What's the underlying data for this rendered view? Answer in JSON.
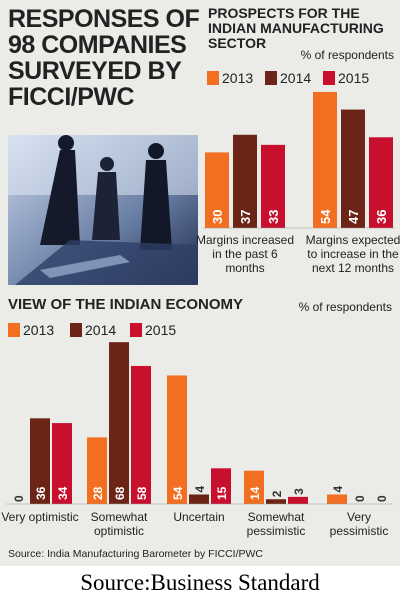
{
  "header": {
    "title": "RESPONSES OF 98 COMPANIES SURVEYED BY FICCI/PWC"
  },
  "chart_data": [
    {
      "type": "bar",
      "title": "PROSPECTS FOR THE INDIAN MANUFACTURING SECTOR",
      "unit": "% of respondents",
      "categories": [
        "Margins increased in the past 6 months",
        "Margins expected to increase in the next 12 months"
      ],
      "series": [
        {
          "name": "2013",
          "color": "#f26f21",
          "values": [
            30,
            54
          ]
        },
        {
          "name": "2014",
          "color": "#6b2416",
          "values": [
            37,
            47
          ]
        },
        {
          "name": "2015",
          "color": "#c8102e",
          "values": [
            33,
            36
          ]
        }
      ]
    },
    {
      "type": "bar",
      "title": "VIEW OF THE INDIAN ECONOMY",
      "unit": "% of respondents",
      "categories": [
        "Very optimistic",
        "Somewhat optimistic",
        "Uncertain",
        "Somewhat pessimistic",
        "Very pessimistic"
      ],
      "series": [
        {
          "name": "2013",
          "color": "#f26f21",
          "values": [
            0,
            28,
            54,
            14,
            4
          ]
        },
        {
          "name": "2014",
          "color": "#6b2416",
          "values": [
            36,
            68,
            4,
            2,
            0
          ]
        },
        {
          "name": "2015",
          "color": "#c8102e",
          "values": [
            34,
            58,
            15,
            3,
            0
          ]
        }
      ]
    }
  ],
  "source": "Source: India Manufacturing Barometer by FICCI/PWC",
  "caption": "Source:Business Standard"
}
